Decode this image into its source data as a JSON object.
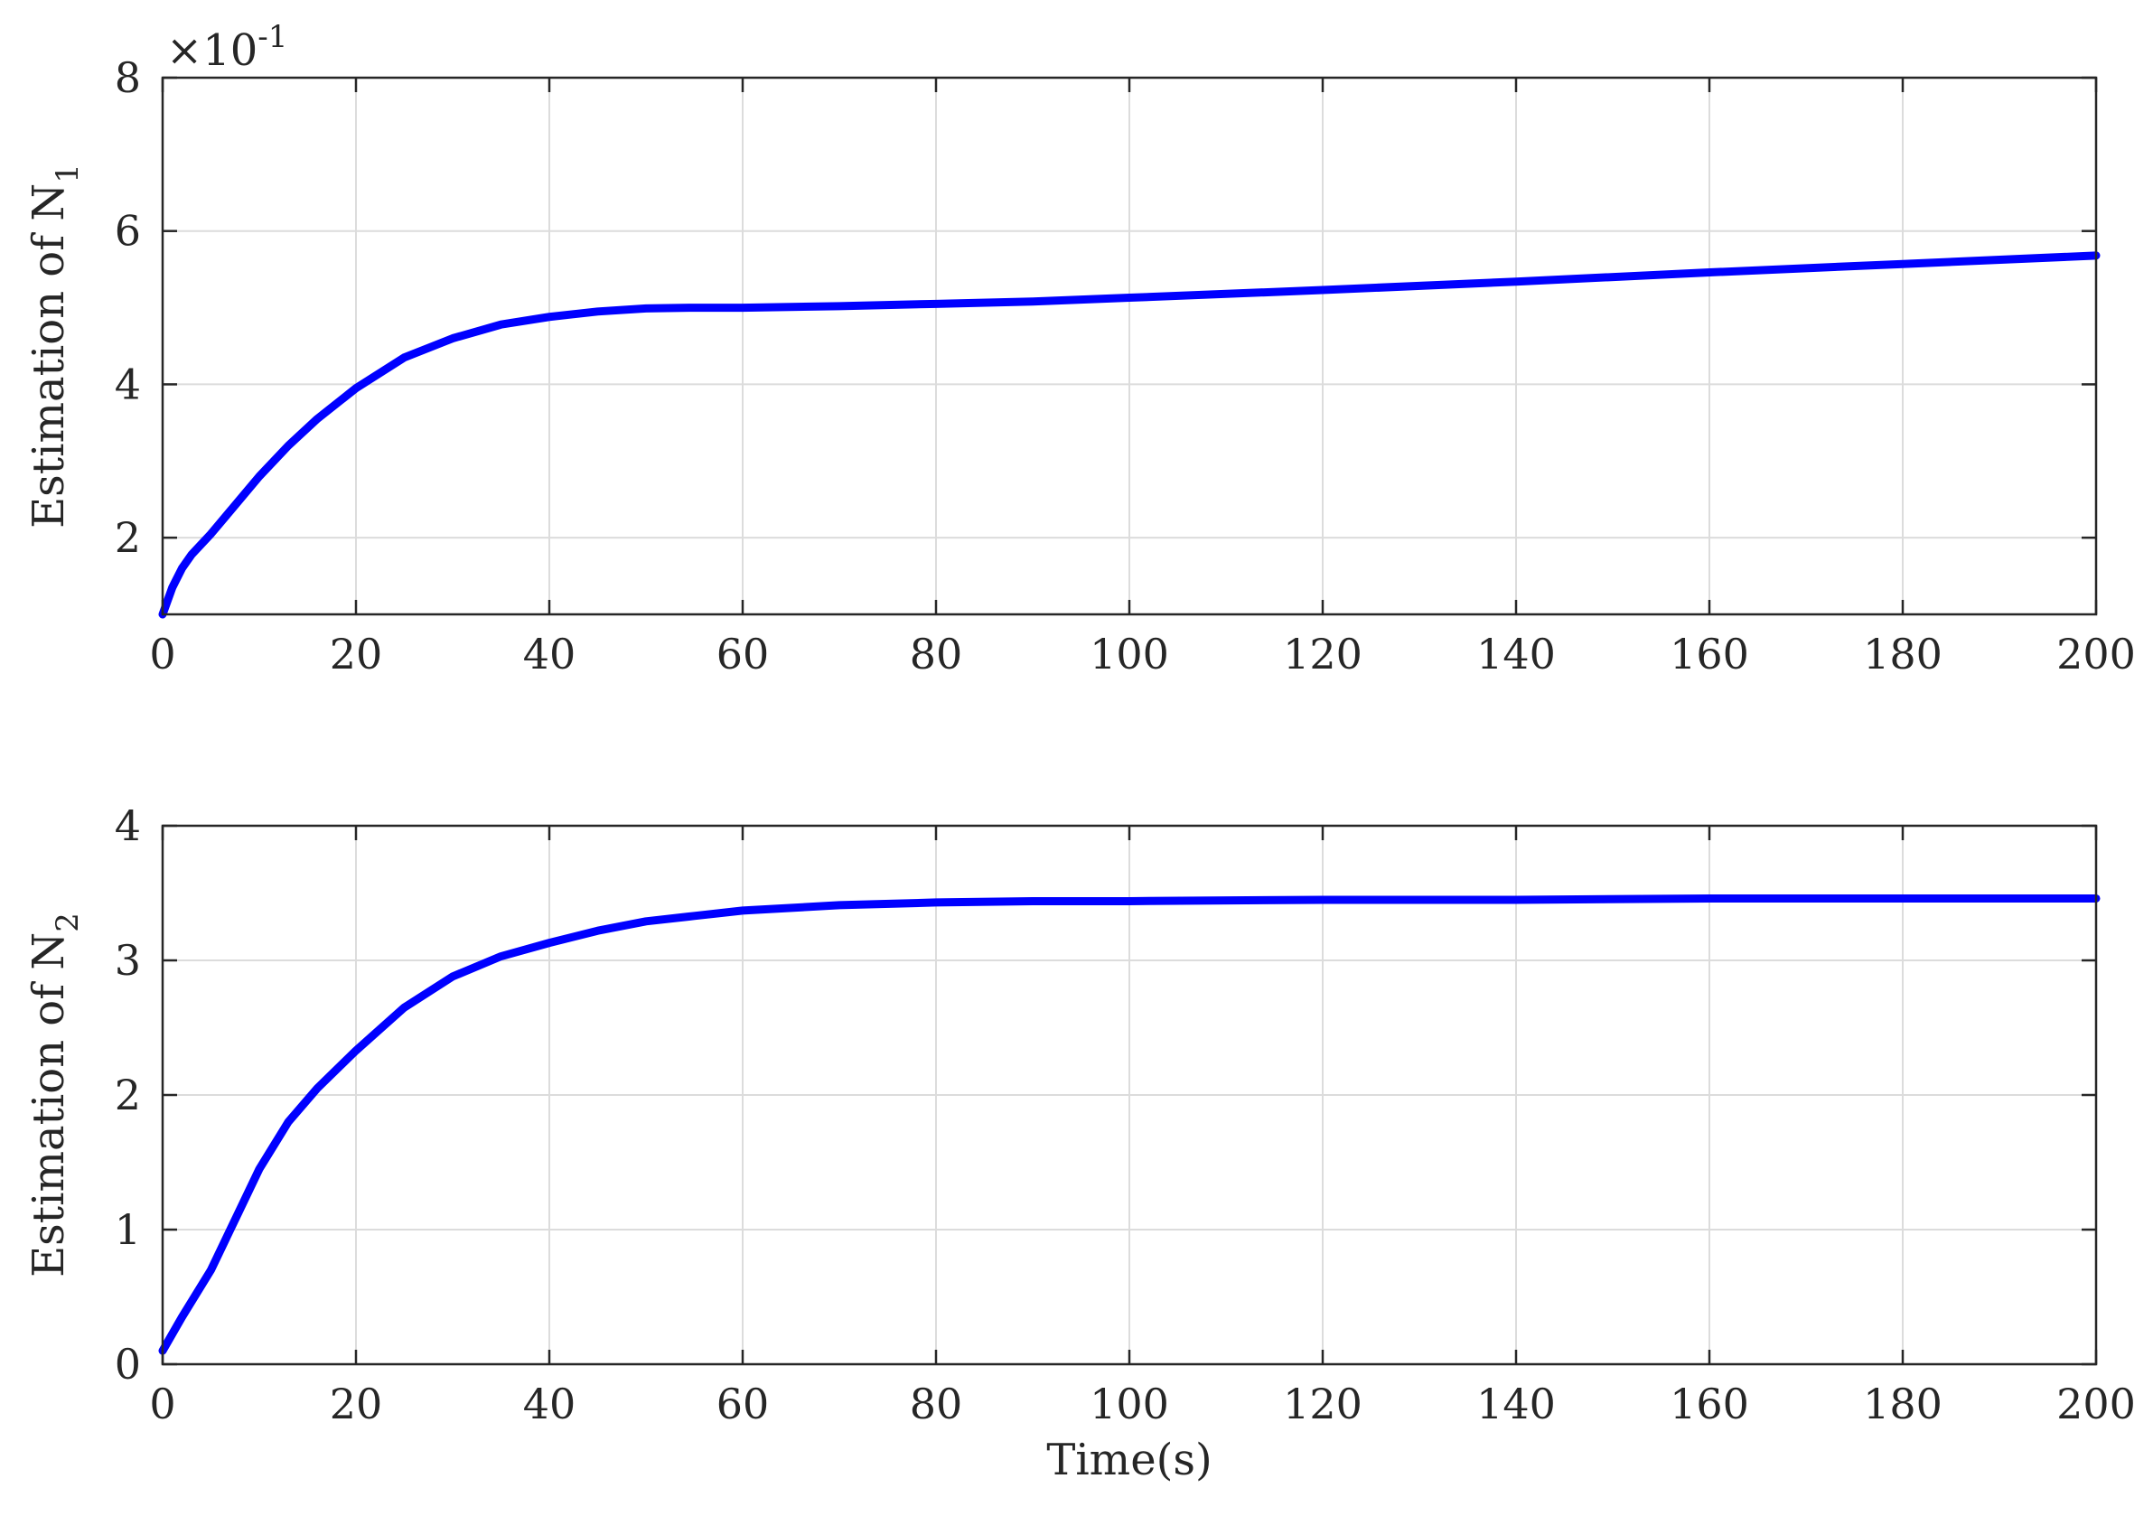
{
  "chart_data": [
    {
      "type": "line",
      "title": "",
      "xlabel": "",
      "ylabel_main": "Estimation of N",
      "ylabel_sub": "1",
      "multiplier_base": "×10",
      "multiplier_exp": "-1",
      "xlim": [
        0,
        200
      ],
      "ylim": [
        1,
        8
      ],
      "xticks": [
        0,
        20,
        40,
        60,
        80,
        100,
        120,
        140,
        160,
        180,
        200
      ],
      "yticks": [
        2,
        4,
        6,
        8
      ],
      "ytick_labels": [
        "2",
        "4",
        "6",
        "8"
      ],
      "grid": true,
      "legend": "none",
      "series": [
        {
          "color": "#0000ff",
          "x": [
            0,
            1,
            2,
            3,
            5,
            7,
            10,
            13,
            16,
            20,
            25,
            30,
            35,
            40,
            45,
            50,
            55,
            60,
            70,
            80,
            90,
            100,
            120,
            140,
            160,
            180,
            200
          ],
          "y": [
            1.0,
            1.35,
            1.6,
            1.78,
            2.05,
            2.35,
            2.8,
            3.2,
            3.55,
            3.95,
            4.35,
            4.6,
            4.78,
            4.88,
            4.95,
            4.99,
            5.0,
            5.0,
            5.02,
            5.05,
            5.08,
            5.13,
            5.23,
            5.34,
            5.46,
            5.57,
            5.68
          ]
        }
      ]
    },
    {
      "type": "line",
      "title": "",
      "xlabel": "Time(s)",
      "ylabel_main": "Estimation of N",
      "ylabel_sub": "2",
      "xlim": [
        0,
        200
      ],
      "ylim": [
        0,
        4
      ],
      "xticks": [
        0,
        20,
        40,
        60,
        80,
        100,
        120,
        140,
        160,
        180,
        200
      ],
      "yticks": [
        0,
        1,
        2,
        3,
        4
      ],
      "ytick_labels": [
        "0",
        "1",
        "2",
        "3",
        "4"
      ],
      "grid": true,
      "legend": "none",
      "series": [
        {
          "color": "#0000ff",
          "x": [
            0,
            2,
            5,
            8,
            10,
            13,
            16,
            20,
            25,
            30,
            35,
            40,
            45,
            50,
            55,
            60,
            70,
            80,
            90,
            100,
            120,
            140,
            160,
            180,
            200
          ],
          "y": [
            0.1,
            0.35,
            0.7,
            1.15,
            1.45,
            1.8,
            2.05,
            2.33,
            2.65,
            2.88,
            3.03,
            3.13,
            3.22,
            3.29,
            3.33,
            3.37,
            3.41,
            3.43,
            3.44,
            3.44,
            3.45,
            3.45,
            3.46,
            3.46,
            3.46
          ]
        }
      ]
    }
  ]
}
